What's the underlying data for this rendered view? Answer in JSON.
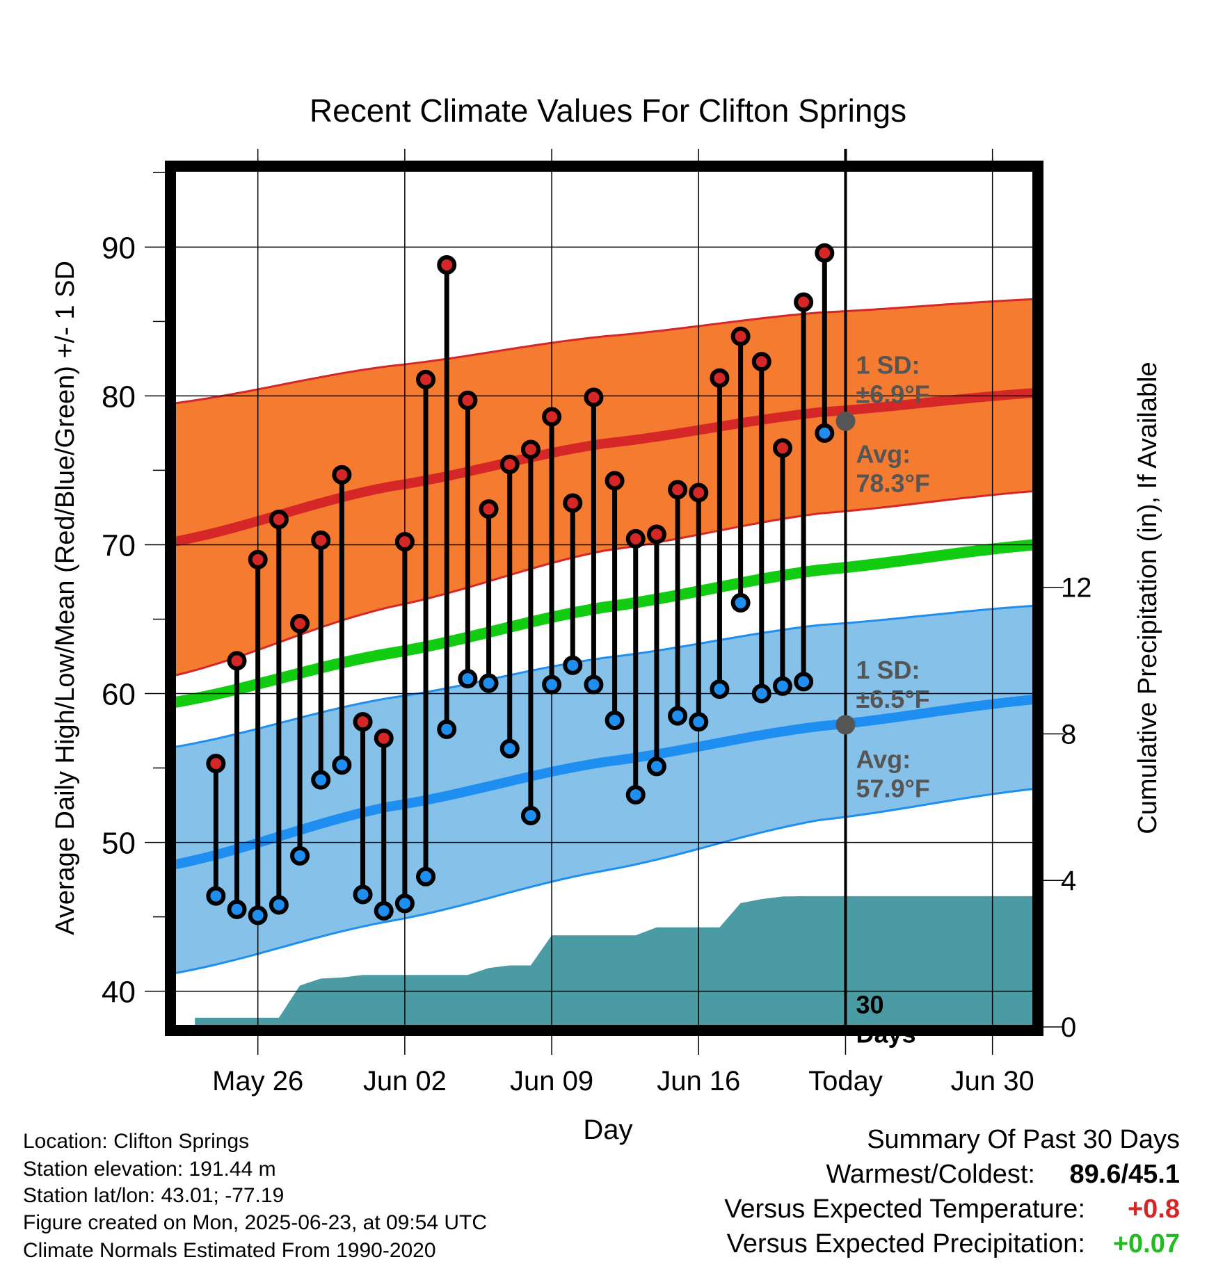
{
  "chart_data": {
    "type": "line",
    "title": "Recent Climate Values For Clifton Springs",
    "xlabel": "Day",
    "ylabel": "Average Daily High/Low/Mean (Red/Blue/Green) +/- 1 SD",
    "y2label": "Cumulative Precipitation (in), If Available",
    "ylim": [
      37.6,
      95.2
    ],
    "y2lim": [
      0,
      23.4
    ],
    "yticks": [
      40,
      50,
      60,
      70,
      80,
      90
    ],
    "y2ticks": [
      0,
      4,
      8,
      12
    ],
    "xlim": [
      "2025-05-22",
      "2025-07-02"
    ],
    "xticks": [
      {
        "date": "2025-05-26",
        "label": "May 26"
      },
      {
        "date": "2025-06-02",
        "label": "Jun 02"
      },
      {
        "date": "2025-06-09",
        "label": "Jun 09"
      },
      {
        "date": "2025-06-16",
        "label": "Jun 16"
      },
      {
        "date": "2025-06-23",
        "label": "Today"
      },
      {
        "date": "2025-06-30",
        "label": "Jun 30"
      }
    ],
    "grid": true,
    "dates": [
      "2025-05-24",
      "2025-05-25",
      "2025-05-26",
      "2025-05-27",
      "2025-05-28",
      "2025-05-29",
      "2025-05-30",
      "2025-05-31",
      "2025-06-01",
      "2025-06-02",
      "2025-06-03",
      "2025-06-04",
      "2025-06-05",
      "2025-06-06",
      "2025-06-07",
      "2025-06-08",
      "2025-06-09",
      "2025-06-10",
      "2025-06-11",
      "2025-06-12",
      "2025-06-13",
      "2025-06-14",
      "2025-06-15",
      "2025-06-16",
      "2025-06-17",
      "2025-06-18",
      "2025-06-19",
      "2025-06-20",
      "2025-06-21",
      "2025-06-22"
    ],
    "series": [
      {
        "name": "High",
        "color": "#d62728",
        "values": [
          55.3,
          62.2,
          69.0,
          71.7,
          64.7,
          70.3,
          74.7,
          58.1,
          57.0,
          70.2,
          81.1,
          88.8,
          79.7,
          72.4,
          75.4,
          76.4,
          78.6,
          72.8,
          79.9,
          74.3,
          70.4,
          70.7,
          73.7,
          73.5,
          81.2,
          84.0,
          82.3,
          76.5,
          86.3,
          89.6
        ]
      },
      {
        "name": "Low",
        "color": "#1f8ef1",
        "values": [
          46.4,
          45.5,
          45.1,
          45.8,
          49.1,
          54.2,
          55.2,
          46.5,
          45.4,
          45.9,
          47.7,
          57.6,
          61.0,
          60.7,
          56.3,
          51.8,
          60.6,
          61.9,
          60.6,
          58.2,
          53.2,
          55.1,
          58.5,
          58.1,
          60.3,
          66.1,
          60.0,
          60.5,
          60.8,
          77.5
        ]
      }
    ],
    "normals": {
      "range": [
        "2025-05-22",
        "2025-07-02"
      ],
      "high_avg": [
        70.2,
        73.9,
        76.8,
        78.9,
        80.2
      ],
      "high_upper": [
        79.5,
        82.0,
        84.0,
        85.6,
        86.5
      ],
      "high_lower": [
        61.2,
        65.8,
        69.6,
        72.1,
        73.6
      ],
      "mean_avg": [
        59.4,
        62.7,
        65.8,
        68.3,
        70.0
      ],
      "low_avg": [
        48.5,
        52.4,
        55.4,
        57.8,
        59.6
      ],
      "low_upper": [
        56.4,
        59.7,
        62.4,
        64.6,
        65.9
      ],
      "low_lower": [
        41.2,
        44.7,
        48.1,
        51.5,
        53.6
      ]
    },
    "precip": {
      "color": "#4a9ba4",
      "dates": [
        "2025-05-23",
        "2025-05-24",
        "2025-05-25",
        "2025-05-26",
        "2025-05-27",
        "2025-05-28",
        "2025-05-29",
        "2025-05-30",
        "2025-05-31",
        "2025-06-01",
        "2025-06-02",
        "2025-06-03",
        "2025-06-04",
        "2025-06-05",
        "2025-06-06",
        "2025-06-07",
        "2025-06-08",
        "2025-06-09",
        "2025-06-10",
        "2025-06-11",
        "2025-06-12",
        "2025-06-13",
        "2025-06-14",
        "2025-06-15",
        "2025-06-16",
        "2025-06-17",
        "2025-06-18",
        "2025-06-19",
        "2025-06-20",
        "2025-06-21",
        "2025-06-22",
        "2025-07-02"
      ],
      "values": [
        0.25,
        0.25,
        0.25,
        0.25,
        0.25,
        1.13,
        1.32,
        1.35,
        1.42,
        1.42,
        1.42,
        1.42,
        1.42,
        1.42,
        1.61,
        1.68,
        1.68,
        2.5,
        2.5,
        2.5,
        2.5,
        2.5,
        2.72,
        2.72,
        2.72,
        2.72,
        3.38,
        3.49,
        3.56,
        3.57,
        3.57,
        3.57
      ]
    },
    "annotations": [
      {
        "text": [
          "1 SD:",
          "±6.9°F"
        ],
        "x": "2025-06-23",
        "y": 81.5
      },
      {
        "text": [
          "Avg:",
          "78.3°F"
        ],
        "x": "2025-06-23",
        "y": 75.5,
        "marker_value": 78.3
      },
      {
        "text": [
          "1 SD:",
          "±6.5°F"
        ],
        "x": "2025-06-23",
        "y": 61.0
      },
      {
        "text": [
          "Avg:",
          "57.9°F"
        ],
        "x": "2025-06-23",
        "y": 55.0,
        "marker_value": 57.9
      },
      {
        "text": [
          "30",
          "Days"
        ],
        "x": "2025-06-23",
        "y": 38.5
      }
    ]
  },
  "footer": {
    "location": "Location: Clifton Springs",
    "elevation": "Station elevation: 191.44 m",
    "latlon": "Station lat/lon: 43.01; -77.19",
    "created": "Figure created on Mon, 2025-06-23, at 09:54 UTC",
    "normals": "Climate Normals Estimated From 1990-2020"
  },
  "summary": {
    "title": "Summary Of Past 30 Days",
    "warm_cold_label": "Warmest/Coldest:",
    "warm_cold_value": "89.6/45.1",
    "temp_label": "Versus Expected Temperature:",
    "temp_value": "+0.8",
    "temp_color": "#d62728",
    "precip_label": "Versus Expected Precipitation:",
    "precip_value": "+0.07",
    "precip_color": "#22bb22"
  }
}
